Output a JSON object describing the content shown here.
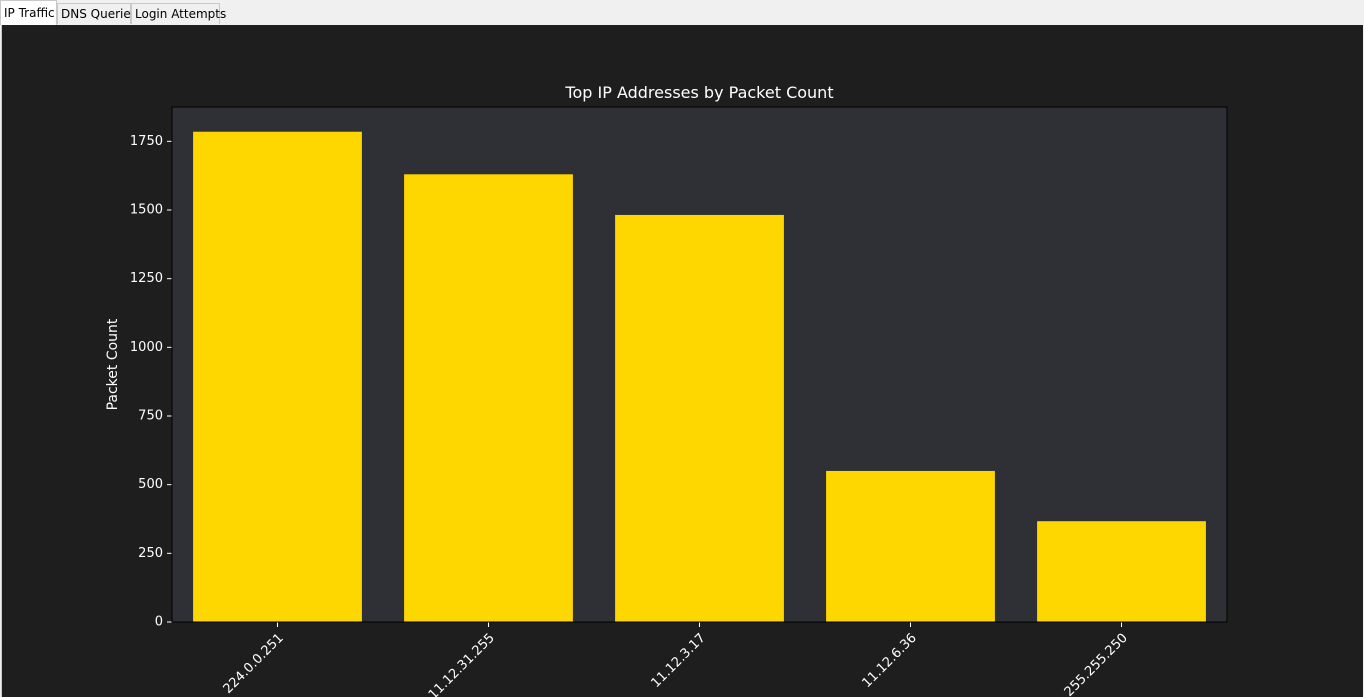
{
  "tabs": [
    {
      "label": "IP Traffic",
      "active": true
    },
    {
      "label": "DNS Queries",
      "active": false
    },
    {
      "label": "Login Attempts",
      "active": false
    }
  ],
  "colors": {
    "figure_bg": "#1e1e1e",
    "axes_bg": "#2e3035",
    "bar": "#ffd700",
    "text": "#ffffff"
  },
  "chart_data": {
    "type": "bar",
    "title": "Top IP Addresses by Packet Count",
    "xlabel": "",
    "ylabel": "Packet Count",
    "categories": [
      "224.0.0.251",
      "11.12.31.255",
      "11.12.3.17",
      "11.12.6.36",
      "255.255.250"
    ],
    "values": [
      1785,
      1630,
      1482,
      550,
      367
    ],
    "ylim": [
      0,
      1875
    ],
    "yticks": [
      0,
      250,
      500,
      750,
      1000,
      1250,
      1500,
      1750
    ],
    "grid": false,
    "legend": "none",
    "xtick_rotation": -45
  }
}
